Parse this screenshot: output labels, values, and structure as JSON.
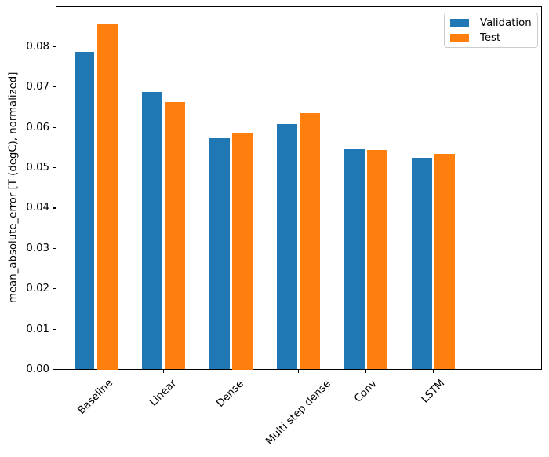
{
  "chart_data": {
    "type": "bar",
    "title": "",
    "xlabel": "",
    "ylabel": "mean_absolute_error [T (degC), normalized]",
    "categories": [
      "Baseline",
      "Linear",
      "Dense",
      "Multi step dense",
      "Conv",
      "LSTM"
    ],
    "series": [
      {
        "name": "Validation",
        "color": "#1f77b4",
        "values": [
          0.0788,
          0.0687,
          0.0573,
          0.0608,
          0.0545,
          0.0524
        ]
      },
      {
        "name": "Test",
        "color": "#ff7f0e",
        "values": [
          0.0855,
          0.0663,
          0.0585,
          0.0635,
          0.0544,
          0.0534
        ]
      }
    ],
    "ylim": [
      0,
      0.09
    ],
    "yticks": [
      0.0,
      0.01,
      0.02,
      0.03,
      0.04,
      0.05,
      0.06,
      0.07,
      0.08
    ],
    "ytick_labels": [
      "0.00",
      "0.01",
      "0.02",
      "0.03",
      "0.04",
      "0.05",
      "0.06",
      "0.07",
      "0.08"
    ],
    "xtick_rotation_deg": 45,
    "bar_width_frac": 0.3,
    "bar_offset_frac": 0.17,
    "grid": false,
    "legend_position": "upper right",
    "axis_color": "#000000",
    "background_color": "#ffffff"
  }
}
